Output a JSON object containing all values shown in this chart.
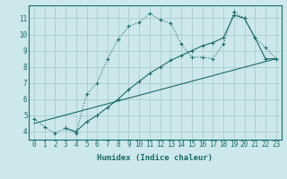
{
  "xlabel": "Humidex (Indice chaleur)",
  "bg_color": "#cce8ea",
  "grid_color": "#aacccc",
  "line_color": "#1a6b6b",
  "line1_x": [
    0,
    1,
    2,
    3,
    4,
    5,
    6,
    7,
    8,
    9,
    10,
    11,
    12,
    13,
    14,
    15,
    16,
    17,
    18,
    19,
    20,
    21,
    22,
    23
  ],
  "line1_y": [
    4.8,
    4.3,
    3.9,
    4.2,
    3.9,
    6.3,
    7.0,
    8.5,
    9.7,
    10.5,
    10.75,
    11.3,
    10.9,
    10.7,
    9.4,
    8.6,
    8.6,
    8.5,
    9.4,
    11.4,
    11.0,
    9.8,
    9.2,
    8.5
  ],
  "line2_x": [
    3,
    4,
    5,
    6,
    7,
    8,
    9,
    10,
    11,
    12,
    13,
    14,
    15,
    16,
    17,
    18,
    19,
    20,
    21,
    22,
    23
  ],
  "line2_y": [
    4.2,
    4.0,
    4.6,
    5.0,
    5.5,
    6.0,
    6.6,
    7.1,
    7.6,
    8.0,
    8.4,
    8.7,
    9.0,
    9.3,
    9.5,
    9.8,
    11.2,
    11.0,
    9.8,
    8.5,
    8.5
  ],
  "line3_x": [
    0,
    23
  ],
  "line3_y": [
    4.5,
    8.5
  ],
  "xlim": [
    -0.5,
    23.5
  ],
  "ylim": [
    3.5,
    11.8
  ],
  "yticks": [
    4,
    5,
    6,
    7,
    8,
    9,
    10,
    11
  ],
  "xticks": [
    0,
    1,
    2,
    3,
    4,
    5,
    6,
    7,
    8,
    9,
    10,
    11,
    12,
    13,
    14,
    15,
    16,
    17,
    18,
    19,
    20,
    21,
    22,
    23
  ]
}
